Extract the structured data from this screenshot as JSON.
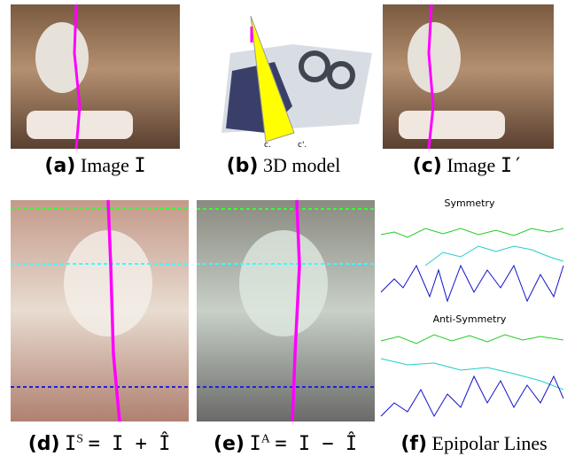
{
  "panels": [
    {
      "label": "(a)",
      "caption": "Image",
      "symbol": "I"
    },
    {
      "label": "(b)",
      "caption": "3D model"
    },
    {
      "label": "(c)",
      "caption": "Image",
      "symbol": "I′"
    },
    {
      "label": "(d)",
      "symbol": "I",
      "superscript": "S",
      "equation": "= I + Î"
    },
    {
      "label": "(e)",
      "symbol": "I",
      "superscript": "A",
      "equation": "= I − Î"
    },
    {
      "label": "(f)",
      "caption": "Epipolar Lines"
    }
  ],
  "model_labels": [
    "c.",
    "c'."
  ],
  "plot_titles": [
    "Symmetry",
    "Anti-Symmetry"
  ]
}
